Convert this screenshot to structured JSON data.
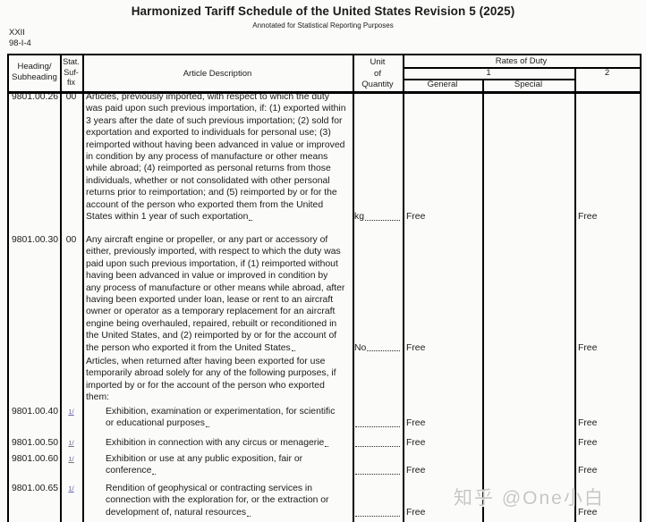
{
  "header": {
    "title": "Harmonized Tariff Schedule of the United States Revision 5 (2025)",
    "subtitle": "Annotated for Statistical Reporting Purposes",
    "section_ref_line1": "XXII",
    "section_ref_line2": "98-I-4"
  },
  "columns": {
    "heading_l1": "Heading/",
    "heading_l2": "Subheading",
    "stat_l1": "Stat.",
    "stat_l2": "Suf-",
    "stat_l3": "fix",
    "description": "Article Description",
    "unit_l1": "Unit",
    "unit_l2": "of",
    "unit_l3": "Quantity",
    "rates_of_duty": "Rates of Duty",
    "duty_col_1": "1",
    "duty_col_2": "2",
    "general": "General",
    "special": "Special"
  },
  "rows": [
    {
      "heading": "9801.00.26",
      "suffix": "00",
      "lines": [
        "Articles, previously imported, with respect to which the duty",
        "was paid upon such previous importation, if: (1) exported within",
        "3 years after the date of such previous importation; (2) sold for",
        "exportation and exported to individuals for personal use; (3)",
        "reimported without having been advanced in value or improved",
        "in condition by any process of manufacture or other means",
        "while abroad; (4) reimported as personal returns from those",
        "individuals, whether or not consolidated with other personal",
        "returns prior to reimportation; and (5) reimported by or for the",
        "account of the person who exported them from the United",
        "States within 1 year of such exportation"
      ],
      "unit": "kg",
      "general": "Free",
      "rate2": "Free"
    },
    {
      "heading": "9801.00.30",
      "suffix": "00",
      "lines": [
        "Any aircraft engine or propeller, or any part or accessory of",
        "either, previously imported, with respect to which the duty was",
        "paid upon such previous importation, if (1) reimported without",
        "having been advanced in value or improved in condition by",
        "any process of manufacture or other means while abroad, after",
        "having been exported under loan, lease or rent to an aircraft",
        "owner or operator as a temporary replacement for an aircraft",
        "engine being overhauled, repaired, rebuilt or reconditioned in",
        "the United States, and (2) reimported by or for the account of",
        "the person who exported it from the United States"
      ],
      "unit": "No",
      "general": "Free",
      "rate2": "Free"
    },
    {
      "lines": [
        "Articles, when returned after having been exported for use",
        "temporarily abroad solely for any of the following purposes, if",
        "imported by or for the account of the person who exported",
        "them:"
      ]
    },
    {
      "heading": "9801.00.40",
      "suffix": "1/",
      "lines": [
        "Exhibition, examination or experimentation, for scientific",
        "or educational purposes"
      ],
      "unit": "",
      "general": "Free",
      "rate2": "Free"
    },
    {
      "heading": "9801.00.50",
      "suffix": "1/",
      "lines": [
        "Exhibition in connection with any circus or menagerie"
      ],
      "unit": "",
      "general": "Free",
      "rate2": "Free"
    },
    {
      "heading": "9801.00.60",
      "suffix": "1/",
      "lines": [
        "Exhibition or use at any public exposition, fair or",
        "conference"
      ],
      "unit": "",
      "general": "Free",
      "rate2": "Free"
    },
    {
      "heading": "9801.00.65",
      "suffix": "1/",
      "lines": [
        "Rendition of geophysical or contracting services in",
        "connection with the exploration for, or the extraction or",
        "development of, natural resources"
      ],
      "unit": "",
      "general": "Free",
      "rate2": "Free"
    }
  ],
  "watermark": "知乎 @One小白"
}
